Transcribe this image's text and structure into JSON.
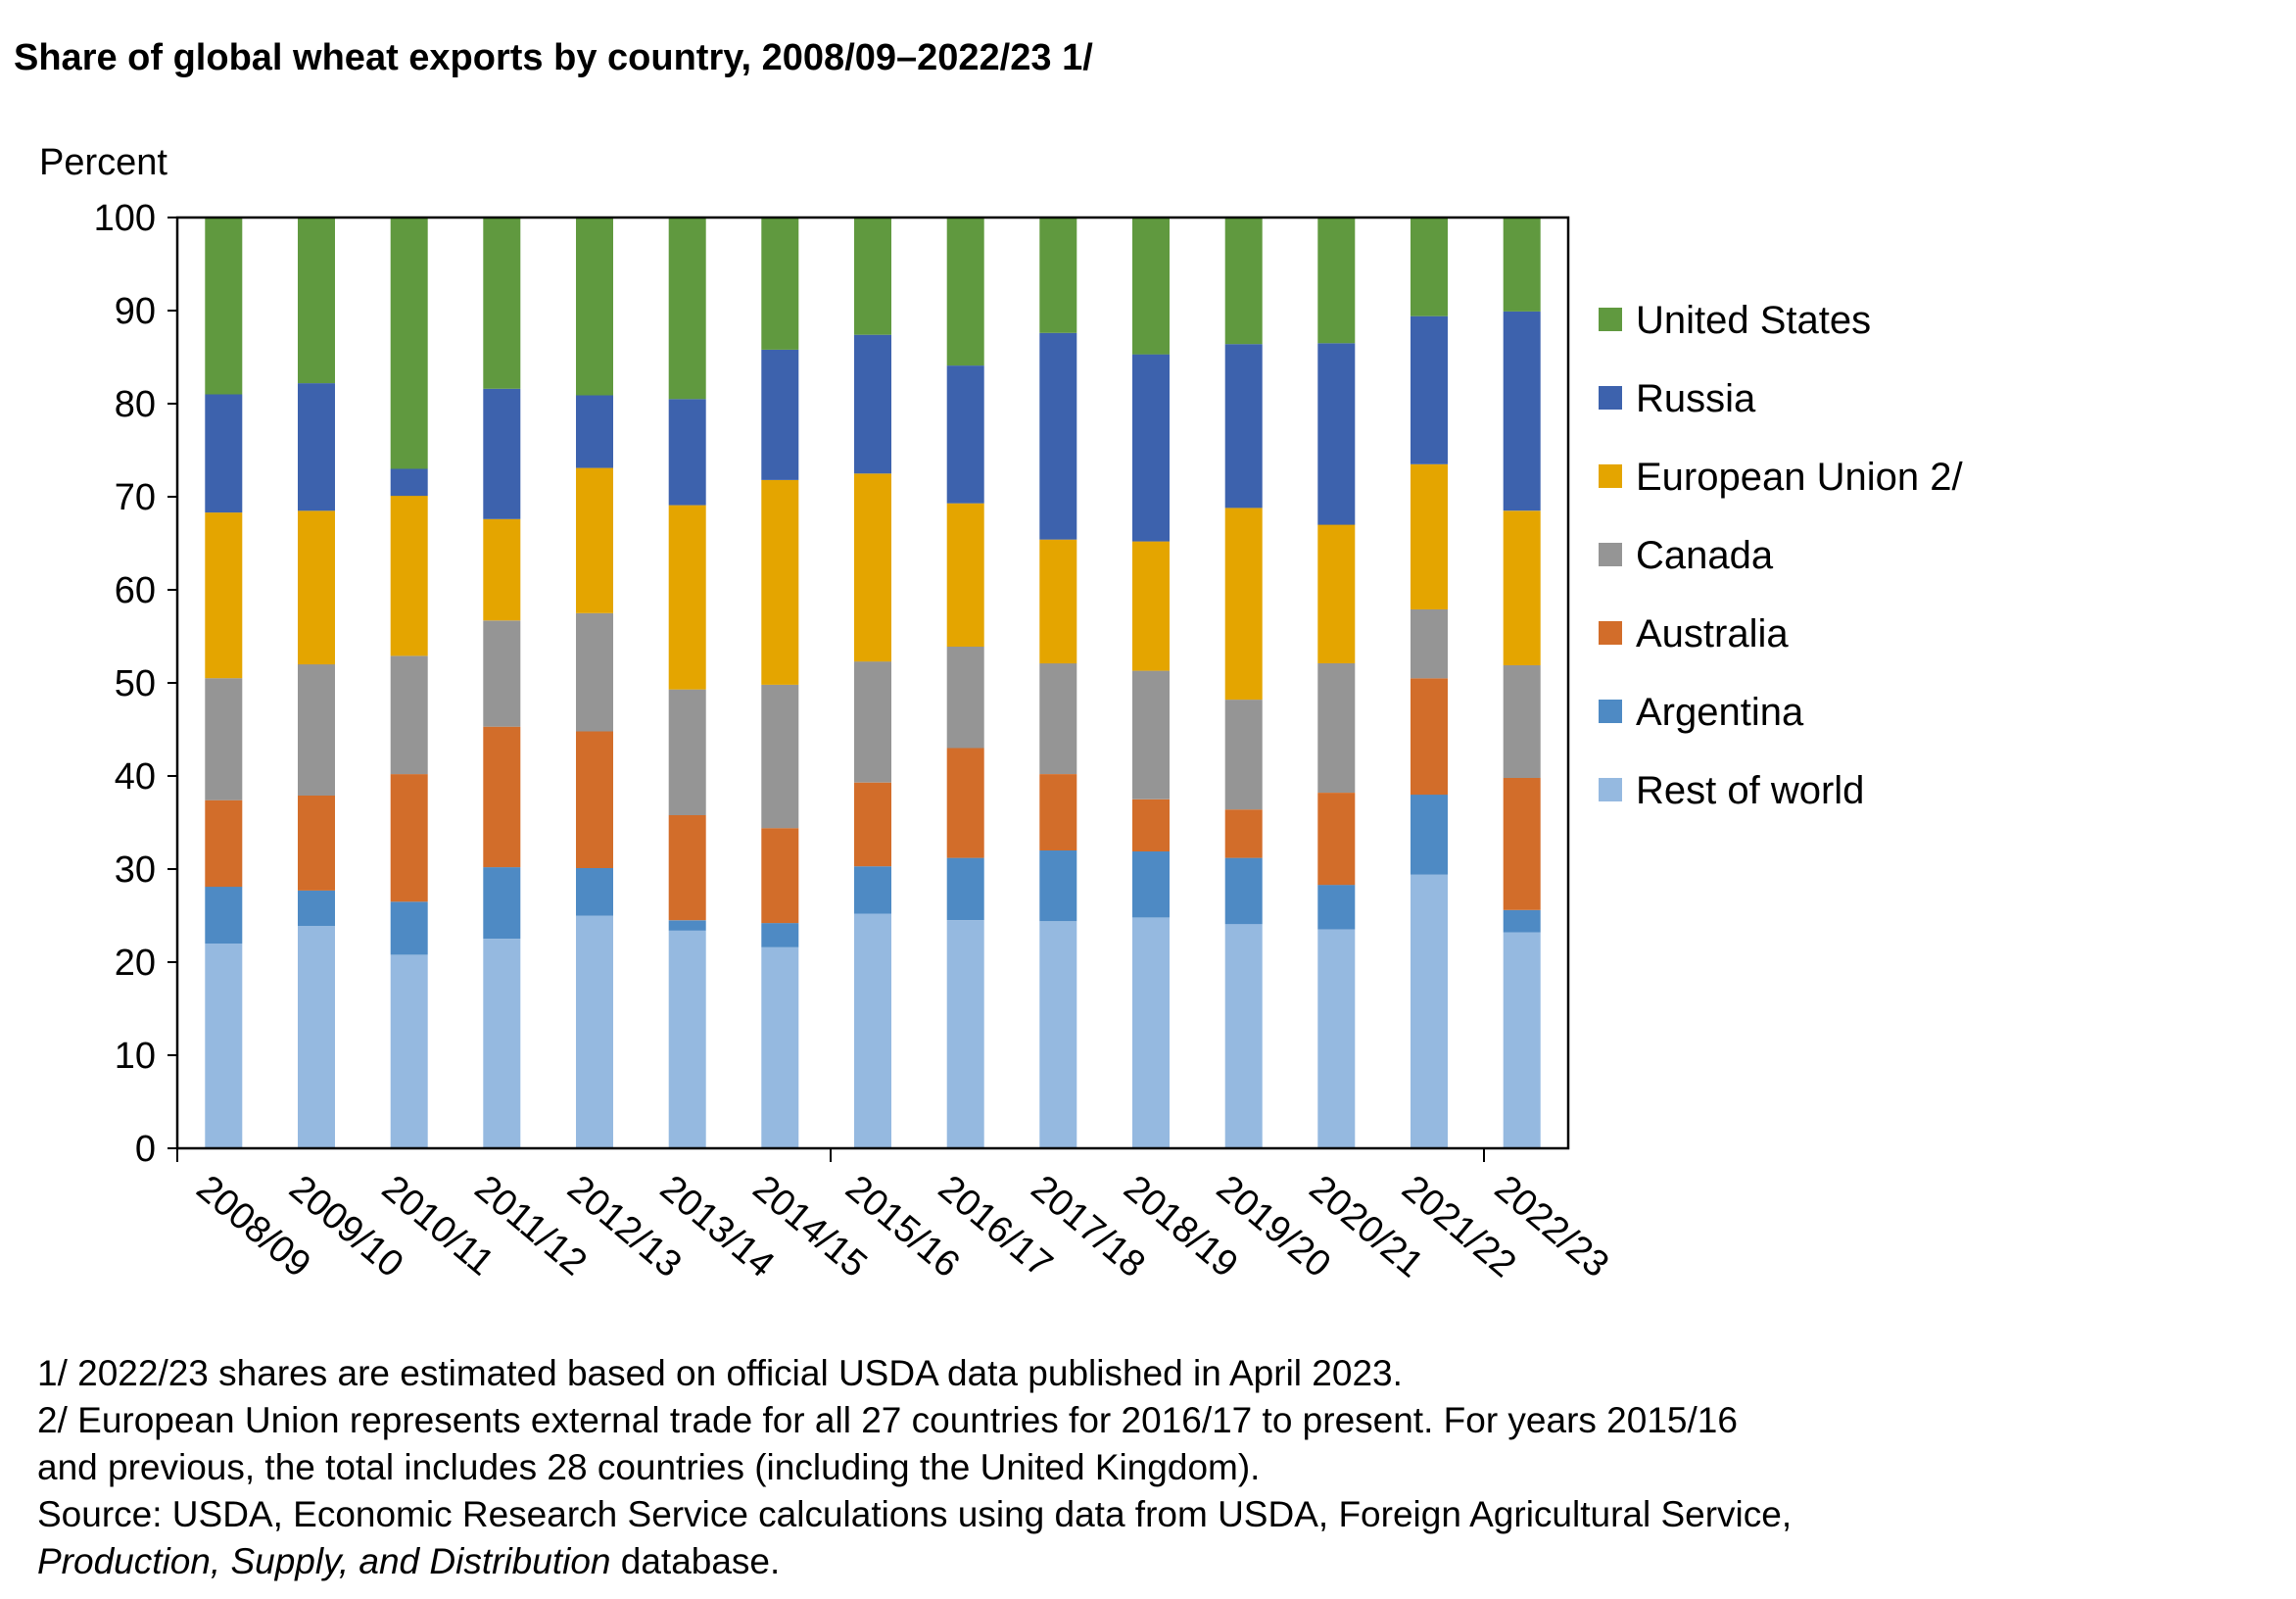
{
  "title": "Share of global wheat exports by country, 2008/09–2022/23 1/",
  "chart_data": {
    "type": "bar",
    "stacked": true,
    "ylabel": "Percent",
    "ylim": [
      0,
      100
    ],
    "yticks": [
      0,
      10,
      20,
      30,
      40,
      50,
      60,
      70,
      80,
      90,
      100
    ],
    "grid": false,
    "legend_position": "right",
    "categories": [
      "2008/09",
      "2009/10",
      "2010/11",
      "2011/12",
      "2012/13",
      "2013/14",
      "2014/15",
      "2015/16",
      "2016/17",
      "2017/18",
      "2018/19",
      "2019/20",
      "2020/21",
      "2021/22",
      "2022/23"
    ],
    "series": [
      {
        "name": "Rest of world",
        "color": "#95b9e0",
        "values": [
          22,
          23.9,
          20.8,
          22.5,
          25,
          23.4,
          21.6,
          25.2,
          24.5,
          24.4,
          24.8,
          24.1,
          23.5,
          29.4,
          23.2
        ]
      },
      {
        "name": "Argentina",
        "color": "#4e8ac4",
        "values": [
          6.1,
          3.8,
          5.7,
          7.7,
          5.1,
          1.1,
          2.6,
          5.1,
          6.7,
          7.6,
          7.1,
          7.1,
          4.8,
          8.6,
          2.4
        ]
      },
      {
        "name": "Australia",
        "color": "#d26d2a",
        "values": [
          9.3,
          10.2,
          13.7,
          15.1,
          14.7,
          11.3,
          10.2,
          9,
          11.8,
          8.2,
          5.6,
          5.2,
          9.9,
          12.5,
          14.2
        ]
      },
      {
        "name": "Canada",
        "color": "#959595",
        "values": [
          13.1,
          14.1,
          12.7,
          11.4,
          12.7,
          13.5,
          15.4,
          13,
          10.9,
          11.9,
          13.8,
          11.8,
          13.9,
          7.4,
          12.1
        ]
      },
      {
        "name": "European Union 2/",
        "color": "#e4a500",
        "values": [
          17.8,
          16.5,
          17.2,
          10.9,
          15.6,
          19.8,
          22,
          20.2,
          15.4,
          13.3,
          13.9,
          20.6,
          14.9,
          15.6,
          16.6
        ]
      },
      {
        "name": "Russia",
        "color": "#3d62ad",
        "values": [
          12.7,
          13.7,
          2.9,
          14,
          7.8,
          11.4,
          14,
          14.9,
          14.8,
          22.2,
          20.1,
          17.6,
          19.5,
          15.9,
          21.4
        ]
      },
      {
        "name": "United States",
        "color": "#60993f",
        "values": [
          19,
          17.8,
          27,
          18.4,
          19.1,
          19.5,
          14.2,
          12.6,
          15.9,
          12.4,
          14.7,
          13.6,
          13.5,
          10.6,
          10.1
        ]
      }
    ]
  },
  "footnotes": {
    "line1": "1/ 2022/23 shares are estimated based on official USDA data published in April 2023.",
    "line2": "2/ European Union represents external trade for all 27 countries for 2016/17 to present. For years 2015/16",
    "line3": "and previous, the total includes 28 countries (including the United Kingdom).",
    "line4": "Source: USDA, Economic Research Service calculations using data from USDA, Foreign Agricultural Service,",
    "line5_italic": "Production, Supply, and Distribution",
    "line5_rest": " database."
  }
}
